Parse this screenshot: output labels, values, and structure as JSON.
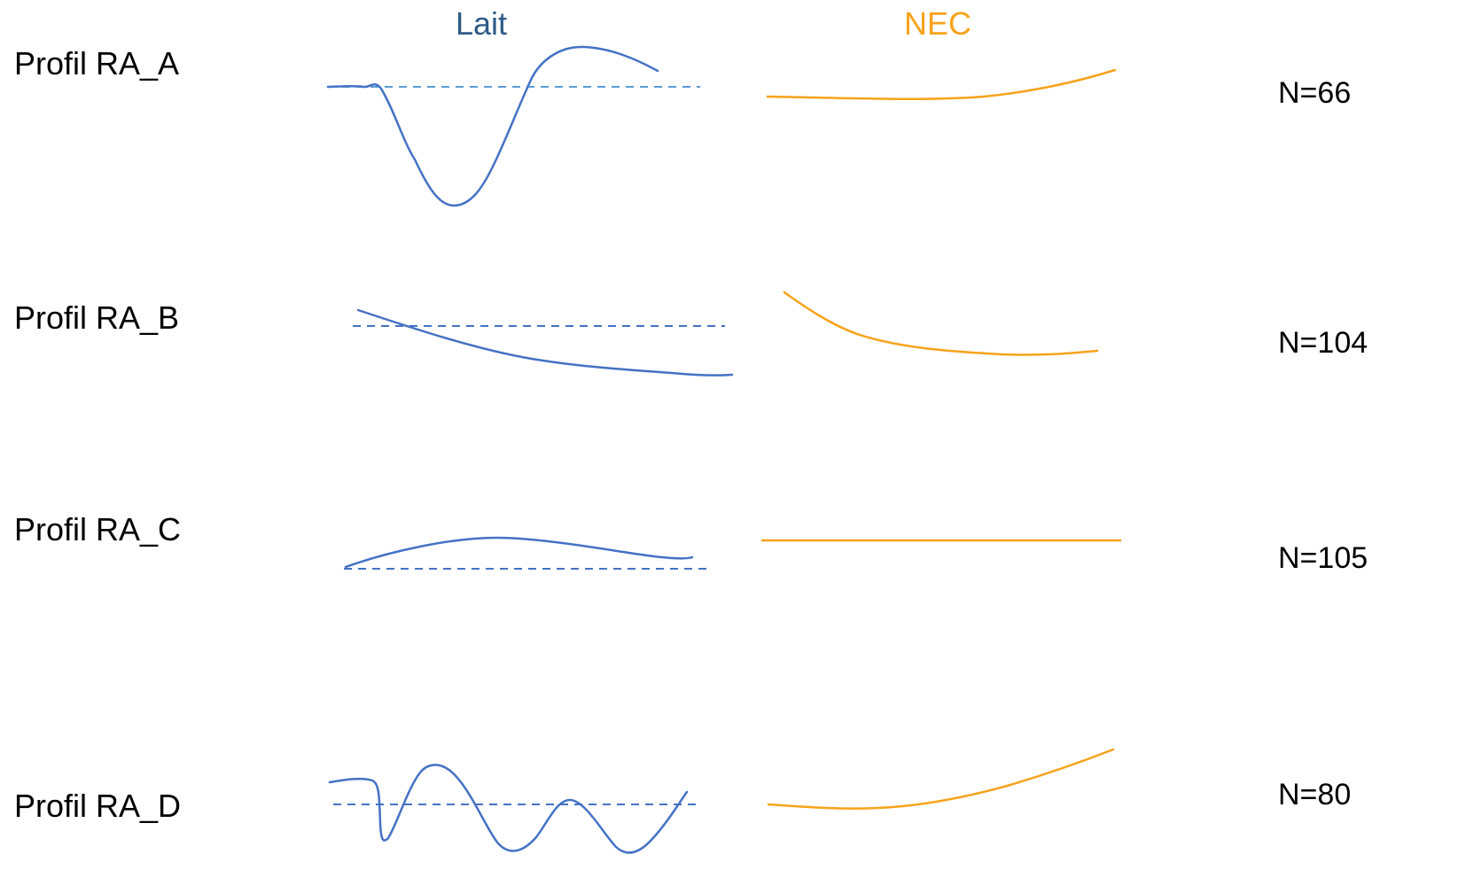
{
  "headers": {
    "lait": "Lait",
    "nec": "NEC"
  },
  "colors": {
    "lait_header": "#2e5a87",
    "nec_header": "#f7a21b",
    "lait_curve": "#4472c4",
    "lait_baseline_a": "#5b9bd5",
    "lait_baseline": "#4472c4",
    "nec_curve": "#f7a21b"
  },
  "profiles": [
    {
      "label": "Profil RA_A",
      "n": "N=66"
    },
    {
      "label": "Profil RA_B",
      "n": "N=104"
    },
    {
      "label": "Profil RA_C",
      "n": "N=105"
    },
    {
      "label": "Profil RA_D",
      "n": "N=80"
    }
  ]
}
